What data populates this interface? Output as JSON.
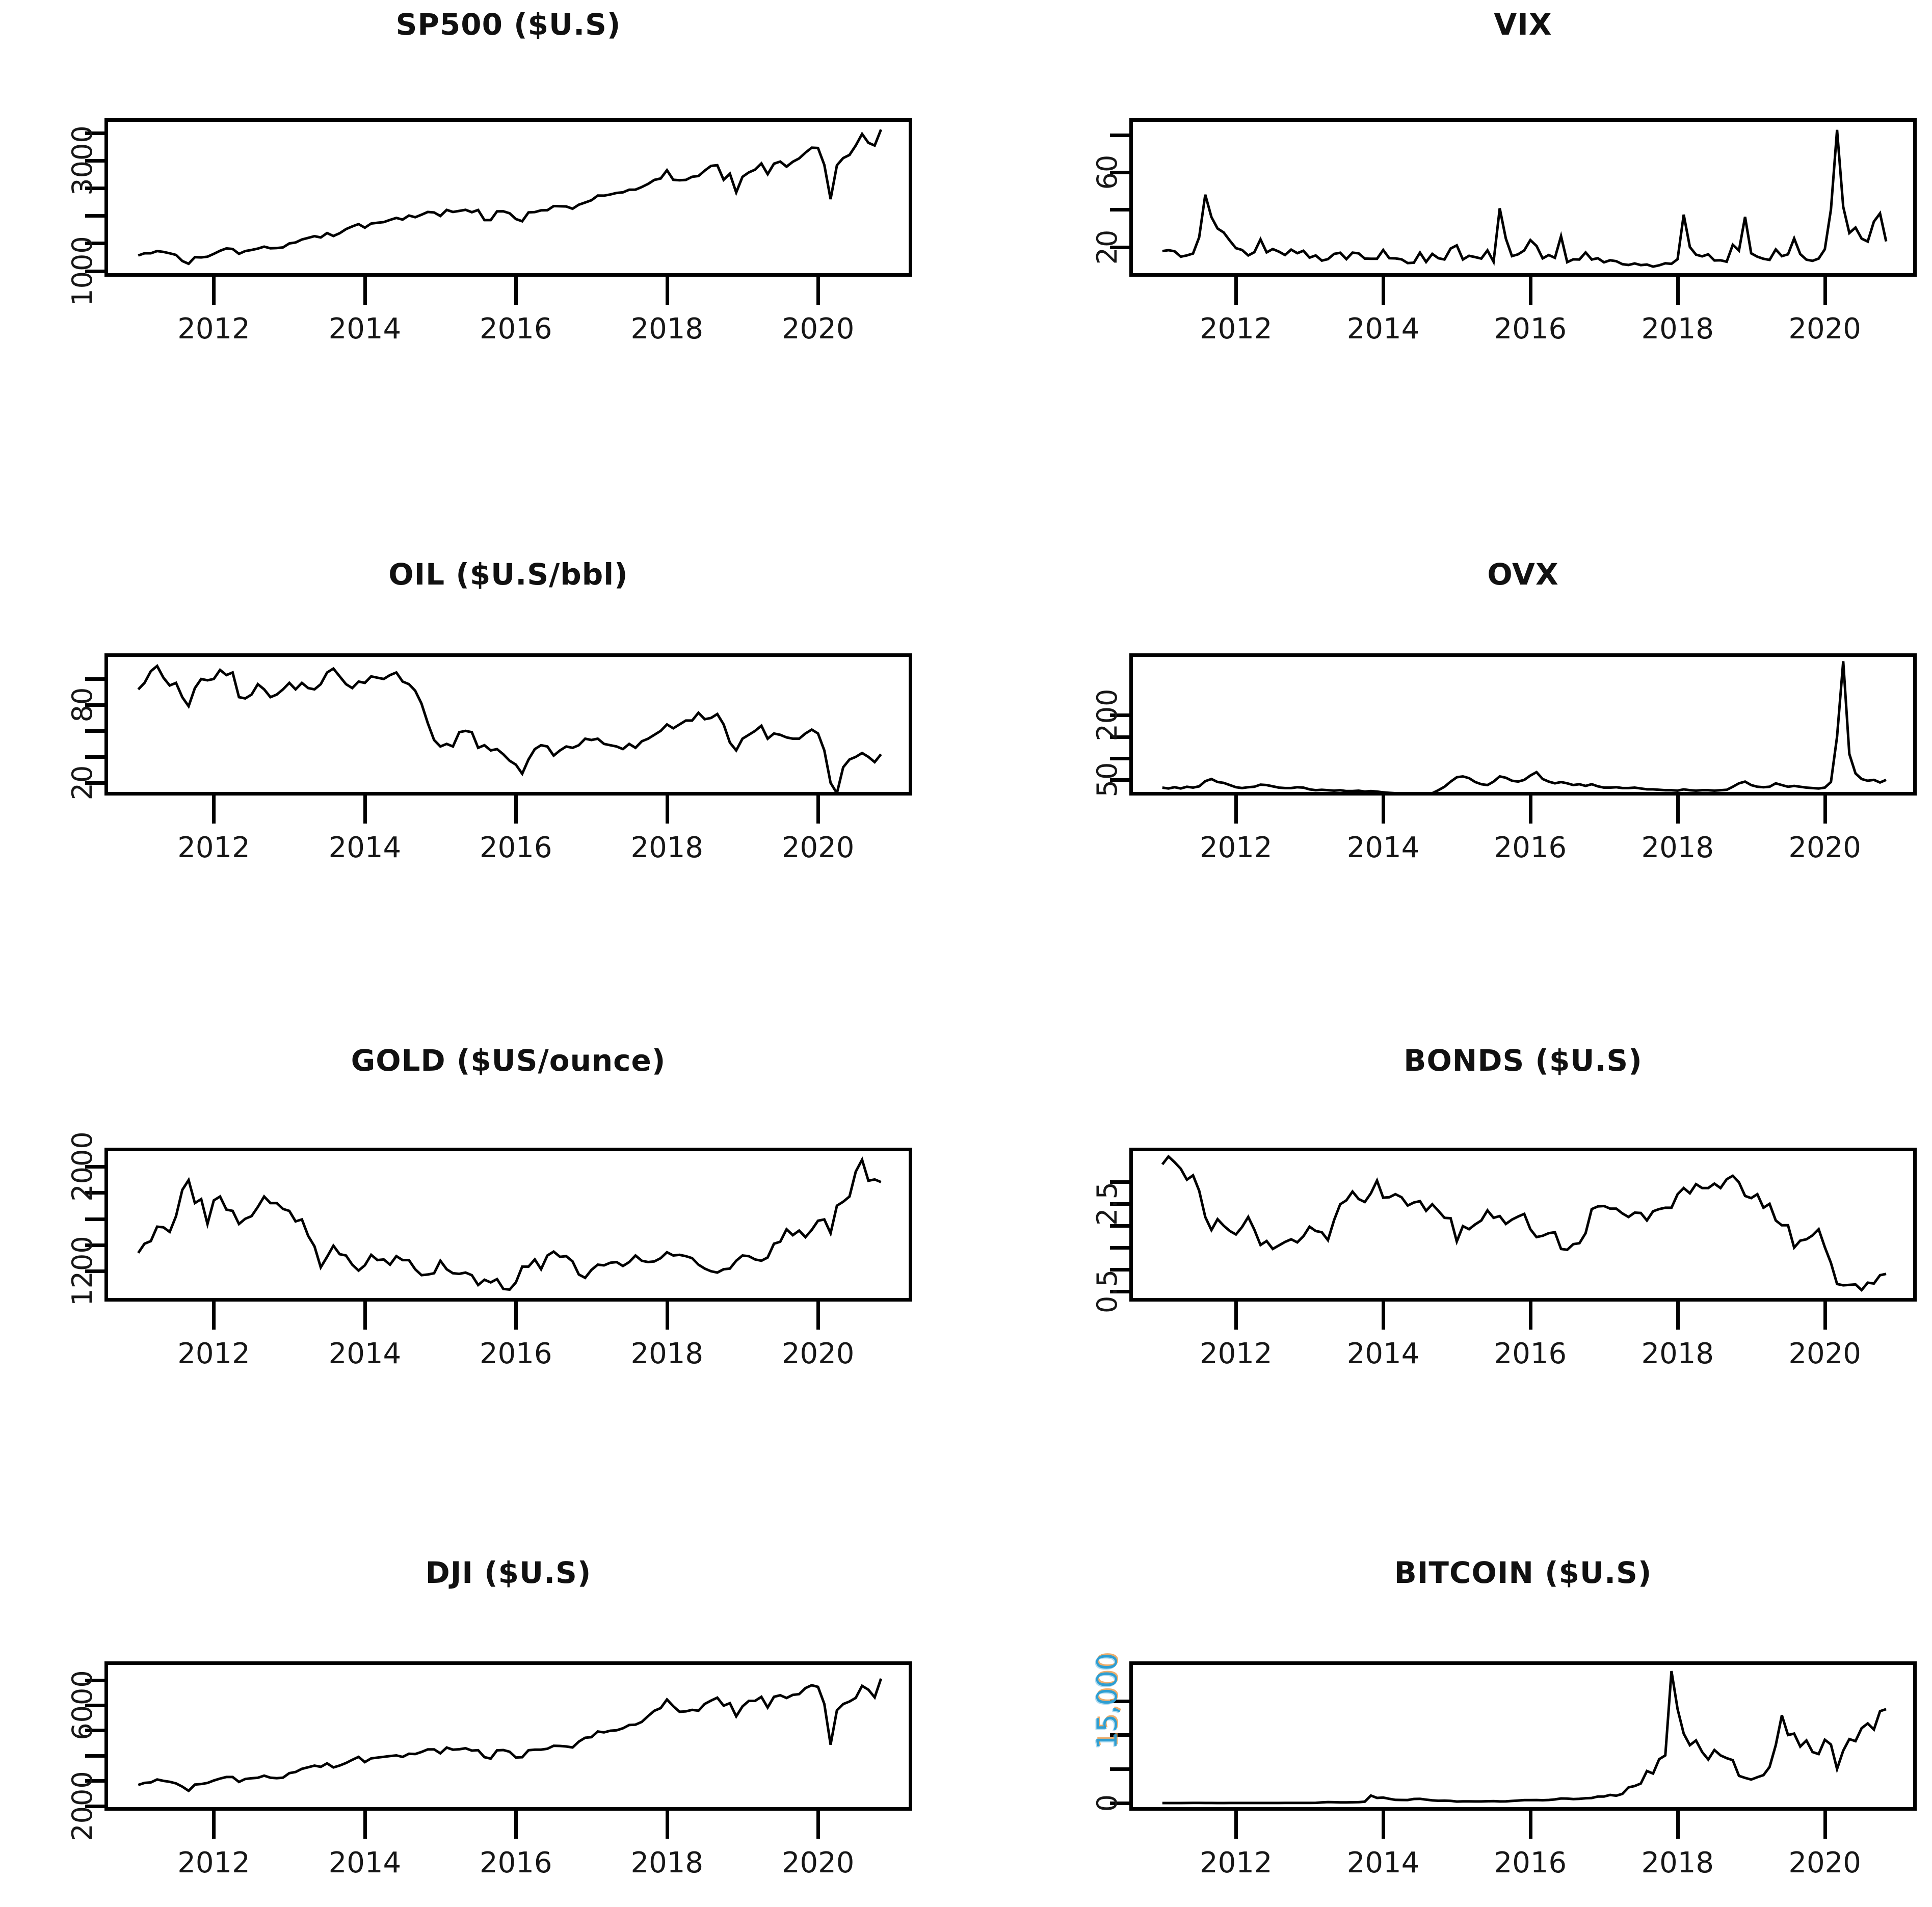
{
  "figure": {
    "description_titles": [
      "SP500 ($U.S)",
      "VIX",
      "OIL ($U.S/bbl)",
      "OVX",
      "GOLD ($US/ounce)",
      "BONDS ($U.S)",
      "DJI ($U.S)",
      "BITCOIN ($U.S)"
    ],
    "x_tick_years": [
      "2012",
      "2014",
      "2016",
      "2018",
      "2020"
    ]
  },
  "chart_data": [
    {
      "type": "line",
      "title": "SP500 ($U.S)",
      "xlabel": "",
      "ylabel": "",
      "xlim": [
        2010.6,
        2021.2
      ],
      "ylim": [
        960,
        3700
      ],
      "xticks": [
        2012,
        2014,
        2016,
        2018,
        2020
      ],
      "yticks": [
        1000,
        1500,
        2000,
        2500,
        3000,
        3500
      ],
      "ytick_labels": [
        {
          "v": 3000,
          "t": "3000"
        },
        {
          "v": 1000,
          "t": "1000"
        }
      ],
      "grid": false,
      "legend": null,
      "x_start": 2011.0,
      "x_step": 0.083333,
      "y": [
        1280,
        1320,
        1320,
        1360,
        1345,
        1320,
        1290,
        1180,
        1130,
        1250,
        1245,
        1258,
        1310,
        1365,
        1408,
        1398,
        1310,
        1360,
        1380,
        1405,
        1440,
        1410,
        1415,
        1426,
        1498,
        1515,
        1569,
        1598,
        1630,
        1606,
        1686,
        1633,
        1682,
        1757,
        1806,
        1848,
        1783,
        1859,
        1872,
        1884,
        1924,
        1960,
        1930,
        2003,
        1972,
        2018,
        2068,
        2059,
        1995,
        2105,
        2068,
        2086,
        2107,
        2063,
        2104,
        1920,
        1920,
        2079,
        2080,
        2044,
        1940,
        1900,
        2060,
        2065,
        2097,
        2099,
        2174,
        2171,
        2168,
        2126,
        2199,
        2239,
        2279,
        2364,
        2363,
        2384,
        2412,
        2423,
        2470,
        2472,
        2519,
        2575,
        2648,
        2674,
        2824,
        2650,
        2641,
        2648,
        2705,
        2718,
        2816,
        2902,
        2914,
        2650,
        2760,
        2420,
        2704,
        2784,
        2834,
        2946,
        2752,
        2942,
        2980,
        2888,
        2977,
        3038,
        3141,
        3231,
        3226,
        2920,
        2300,
        2912,
        3044,
        3100,
        3271,
        3480,
        3320,
        3270,
        3560
      ]
    },
    {
      "type": "line",
      "title": "VIX",
      "xlabel": "",
      "ylabel": "",
      "xlim": [
        2010.6,
        2021.2
      ],
      "ylim": [
        6,
        87
      ],
      "xticks": [
        2012,
        2014,
        2016,
        2018,
        2020
      ],
      "yticks": [
        20,
        40,
        60,
        80
      ],
      "ytick_labels": [
        {
          "v": 60,
          "t": "60"
        },
        {
          "v": 20,
          "t": "20"
        }
      ],
      "grid": false,
      "legend": null,
      "x_start": 2011.0,
      "x_step": 0.083333,
      "y": [
        17.8,
        18.3,
        17.7,
        14.8,
        15.5,
        16.5,
        25.2,
        48,
        36,
        29.9,
        27.8,
        23.4,
        19.4,
        18.4,
        15.5,
        17.2,
        24.1,
        17.1,
        18.9,
        17.5,
        15.7,
        18.6,
        16.7,
        18.0,
        14.3,
        15.5,
        12.7,
        13.5,
        16.3,
        16.9,
        13.5,
        17.0,
        16.6,
        13.8,
        13.7,
        13.7,
        18.4,
        14.0,
        13.9,
        13.4,
        11.4,
        11.6,
        17.0,
        12.0,
        16.3,
        14.0,
        13.3,
        19.2,
        20.9,
        13.3,
        15.3,
        14.6,
        13.8,
        18.2,
        12.1,
        40.7,
        24.5,
        15.1,
        16.1,
        18.2,
        23.7,
        20.6,
        13.9,
        15.7,
        14.2,
        25.8,
        11.9,
        13.4,
        13.3,
        17.1,
        13.3,
        14.0,
        11.8,
        12.9,
        12.4,
        10.8,
        10.4,
        11.2,
        10.3,
        10.6,
        9.5,
        10.2,
        11.3,
        11.0,
        13.5,
        37.3,
        20.0,
        15.9,
        15.0,
        16.1,
        12.8,
        12.9,
        12.1,
        21.2,
        18.1,
        36.1,
        16.6,
        14.8,
        13.7,
        13.1,
        18.7,
        15.1,
        16.1,
        24.6,
        16.2,
        13.2,
        12.6,
        13.8,
        18.8,
        40.1,
        82.7,
        41.5,
        27.5,
        30.4,
        24.5,
        22.9,
        33.6,
        38.0,
        23.0
      ]
    },
    {
      "type": "line",
      "title": "OIL ($U.S/bbl)",
      "xlabel": "",
      "ylabel": "",
      "xlim": [
        2010.6,
        2021.2
      ],
      "ylim": [
        13,
        117
      ],
      "xticks": [
        2012,
        2014,
        2016,
        2018,
        2020
      ],
      "yticks": [
        20,
        40,
        60,
        80,
        100
      ],
      "ytick_labels": [
        {
          "v": 80,
          "t": "80"
        },
        {
          "v": 20,
          "t": "20"
        }
      ],
      "grid": false,
      "legend": null,
      "x_start": 2011.0,
      "x_step": 0.083333,
      "y": [
        92,
        97,
        106,
        110,
        101,
        95,
        97,
        86,
        79,
        93,
        100,
        99,
        100,
        107,
        103,
        105,
        86,
        85,
        88,
        96,
        92,
        86,
        88,
        92,
        97,
        92,
        97,
        93,
        92,
        96,
        105,
        108,
        102,
        96,
        93,
        98,
        97,
        102,
        101,
        100,
        103,
        105,
        98,
        96,
        91,
        81,
        66,
        53,
        48,
        50,
        48,
        59,
        60,
        59,
        47,
        49,
        45,
        46,
        42,
        37,
        34,
        27,
        38,
        46,
        49,
        48,
        41,
        45,
        48,
        47,
        49,
        54,
        53,
        54,
        50,
        49,
        48,
        46,
        50,
        47,
        52,
        54,
        57,
        60,
        65,
        62,
        65,
        68,
        68,
        74,
        69,
        70,
        73,
        65,
        51,
        45,
        54,
        57,
        60,
        64,
        54,
        58,
        57,
        55,
        54,
        54,
        58,
        61,
        58,
        45,
        20,
        12,
        32,
        38,
        40,
        43,
        40,
        36,
        42
      ]
    },
    {
      "type": "line",
      "title": "OVX",
      "xlabel": "",
      "ylabel": "",
      "xlim": [
        2010.6,
        2021.2
      ],
      "ylim": [
        22,
        335
      ],
      "xticks": [
        2012,
        2014,
        2016,
        2018,
        2020
      ],
      "yticks": [
        50,
        100,
        150,
        200
      ],
      "ytick_labels": [
        {
          "v": 200,
          "t": "200"
        },
        {
          "v": 50,
          "t": "50"
        }
      ],
      "grid": false,
      "legend": null,
      "x_start": 2011.0,
      "x_step": 0.083333,
      "y": [
        32,
        30,
        33,
        30,
        34,
        32,
        35,
        47,
        52,
        45,
        43,
        38,
        33,
        31,
        33,
        34,
        39,
        38,
        35,
        32,
        31,
        31,
        33,
        32,
        28,
        26,
        27,
        26,
        25,
        26,
        24,
        24,
        25,
        23,
        24,
        23,
        21,
        20,
        19,
        17,
        16,
        15,
        15,
        16,
        19,
        26,
        34,
        46,
        56,
        58,
        54,
        45,
        40,
        38,
        46,
        58,
        55,
        48,
        46,
        50,
        60,
        68,
        52,
        46,
        42,
        45,
        42,
        38,
        40,
        36,
        40,
        35,
        32,
        32,
        33,
        31,
        31,
        32,
        30,
        28,
        28,
        27,
        26,
        26,
        25,
        28,
        26,
        25,
        26,
        26,
        25,
        26,
        27,
        34,
        42,
        46,
        38,
        34,
        33,
        34,
        42,
        38,
        34,
        36,
        34,
        32,
        31,
        30,
        32,
        45,
        150,
        325,
        110,
        65,
        52,
        48,
        50,
        44,
        50
      ]
    },
    {
      "type": "line",
      "title": "GOLD ($US/ounce)",
      "xlabel": "",
      "ylabel": "",
      "xlim": [
        2010.6,
        2021.2
      ],
      "ylim": [
        996,
        2115
      ],
      "xticks": [
        2012,
        2014,
        2016,
        2018,
        2020
      ],
      "yticks": [
        1200,
        1400,
        1600,
        1800,
        2000
      ],
      "ytick_labels": [
        {
          "v": 2000,
          "t": "2000"
        },
        {
          "v": 1200,
          "t": "1200"
        }
      ],
      "grid": false,
      "legend": null,
      "x_start": 2011.0,
      "x_step": 0.083333,
      "y": [
        1340,
        1410,
        1430,
        1540,
        1535,
        1500,
        1620,
        1820,
        1895,
        1720,
        1750,
        1560,
        1740,
        1770,
        1670,
        1660,
        1560,
        1600,
        1620,
        1690,
        1770,
        1720,
        1720,
        1675,
        1660,
        1580,
        1595,
        1470,
        1390,
        1230,
        1310,
        1395,
        1330,
        1320,
        1250,
        1205,
        1245,
        1325,
        1285,
        1290,
        1250,
        1315,
        1285,
        1285,
        1215,
        1170,
        1175,
        1185,
        1280,
        1215,
        1185,
        1180,
        1190,
        1170,
        1095,
        1135,
        1115,
        1140,
        1065,
        1060,
        1115,
        1235,
        1235,
        1290,
        1215,
        1320,
        1350,
        1310,
        1315,
        1275,
        1175,
        1150,
        1210,
        1250,
        1245,
        1265,
        1270,
        1240,
        1270,
        1320,
        1280,
        1270,
        1275,
        1300,
        1345,
        1320,
        1325,
        1315,
        1300,
        1250,
        1220,
        1200,
        1190,
        1215,
        1220,
        1280,
        1320,
        1315,
        1290,
        1280,
        1305,
        1410,
        1425,
        1520,
        1475,
        1510,
        1460,
        1515,
        1585,
        1595,
        1490,
        1700,
        1730,
        1770,
        1960,
        2050,
        1890,
        1900,
        1880
      ]
    },
    {
      "type": "line",
      "title": "BONDS ($U.S)",
      "xlabel": "",
      "ylabel": "",
      "xlim": [
        2010.6,
        2021.2
      ],
      "ylim": [
        0.35,
        3.7
      ],
      "xticks": [
        2012,
        2014,
        2016,
        2018,
        2020
      ],
      "yticks": [
        0.5,
        1.0,
        1.5,
        2.0,
        2.5,
        3.0
      ],
      "ytick_labels": [
        {
          "v": 2.5,
          "t": "2.5"
        },
        {
          "v": 0.5,
          "t": "0.5"
        }
      ],
      "grid": false,
      "legend": null,
      "x_start": 2011.0,
      "x_step": 0.083333,
      "y": [
        3.4,
        3.58,
        3.45,
        3.3,
        3.05,
        3.15,
        2.8,
        2.2,
        1.9,
        2.15,
        2.0,
        1.88,
        1.8,
        1.97,
        2.2,
        1.91,
        1.56,
        1.65,
        1.47,
        1.55,
        1.63,
        1.69,
        1.62,
        1.76,
        1.98,
        1.88,
        1.85,
        1.67,
        2.13,
        2.49,
        2.58,
        2.78,
        2.61,
        2.54,
        2.74,
        3.03,
        2.64,
        2.65,
        2.72,
        2.65,
        2.46,
        2.53,
        2.56,
        2.34,
        2.49,
        2.34,
        2.18,
        2.17,
        1.64,
        1.99,
        1.92,
        2.03,
        2.12,
        2.35,
        2.18,
        2.22,
        2.04,
        2.14,
        2.21,
        2.27,
        1.92,
        1.74,
        1.77,
        1.83,
        1.85,
        1.47,
        1.45,
        1.58,
        1.6,
        1.83,
        2.38,
        2.44,
        2.45,
        2.39,
        2.39,
        2.28,
        2.2,
        2.3,
        2.29,
        2.12,
        2.33,
        2.38,
        2.41,
        2.41,
        2.72,
        2.86,
        2.74,
        2.95,
        2.86,
        2.86,
        2.96,
        2.86,
        3.06,
        3.14,
        2.99,
        2.68,
        2.63,
        2.72,
        2.41,
        2.5,
        2.12,
        2.01,
        2.01,
        1.5,
        1.66,
        1.69,
        1.78,
        1.92,
        1.51,
        1.15,
        0.67,
        0.64,
        0.65,
        0.66,
        0.53,
        0.7,
        0.68,
        0.87,
        0.9
      ]
    },
    {
      "type": "line",
      "title": "DJI ($U.S)",
      "xlabel": "",
      "ylabel": "",
      "xlim": [
        2010.6,
        2021.2
      ],
      "ylim": [
        1950,
        7600
      ],
      "xticks": [
        2012,
        2014,
        2016,
        2018,
        2020
      ],
      "yticks": [
        2000,
        3000,
        4000,
        5000,
        6000,
        7000
      ],
      "ytick_labels": [
        {
          "v": 6000,
          "t": "6000"
        },
        {
          "v": 2000,
          "t": "2000"
        }
      ],
      "grid": false,
      "legend": null,
      "x_start": 2011.0,
      "x_step": 0.083333,
      "y": [
        2831,
        2911,
        2933,
        3050,
        2993,
        2956,
        2891,
        2765,
        2598,
        2846,
        2868,
        2909,
        3008,
        3084,
        3146,
        3146,
        2951,
        3067,
        3097,
        3117,
        3199,
        3118,
        3101,
        3120,
        3300,
        3346,
        3471,
        3533,
        3599,
        3550,
        3690,
        3526,
        3602,
        3701,
        3830,
        3947,
        3738,
        3886,
        3919,
        3948,
        3980,
        4006,
        3944,
        4071,
        4058,
        4141,
        4245,
        4243,
        4087,
        4317,
        4232,
        4248,
        4288,
        4195,
        4212,
        3935,
        3877,
        4206,
        4219,
        4149,
        3921,
        3933,
        4211,
        4232,
        4235,
        4269,
        4389,
        4381,
        4359,
        4320,
        4553,
        4706,
        4730,
        4955,
        4920,
        4986,
        5002,
        5083,
        5212,
        5226,
        5335,
        5566,
        5779,
        5885,
        6226,
        5959,
        5739,
        5753,
        5813,
        5779,
        6051,
        6182,
        6300,
        5980,
        6080,
        5554,
        5952,
        6170,
        6173,
        6332,
        5908,
        6333,
        6396,
        6286,
        6409,
        6439,
        6679,
        6795,
        6728,
        6050,
        4430,
        5797,
        6044,
        6146,
        6292,
        6769,
        6615,
        6310,
        7057
      ]
    },
    {
      "type": "line",
      "title": "BITCOIN ($U.S)",
      "xlabel": "",
      "ylabel": "",
      "xlim": [
        2010.6,
        2021.2
      ],
      "ylim": [
        -600,
        20300
      ],
      "xticks": [
        2012,
        2014,
        2016,
        2018,
        2020
      ],
      "yticks": [
        0,
        5000,
        10000,
        15000
      ],
      "ytick_labels": [
        {
          "v": 15000,
          "t": "15,000",
          "colored": true
        },
        {
          "v": 0,
          "t": "0"
        }
      ],
      "accent_label_color": "#2e9ed2",
      "accent_label_fringe_color": "#e8923a",
      "grid": false,
      "legend": null,
      "x_start": 2011.0,
      "x_step": 0.083333,
      "y": [
        1,
        1,
        1,
        1,
        8,
        15,
        14,
        10,
        5,
        3,
        3,
        4,
        6,
        5,
        5,
        5,
        5,
        7,
        8,
        10,
        12,
        11,
        12,
        13,
        15,
        30,
        90,
        140,
        120,
        100,
        95,
        110,
        130,
        200,
        1100,
        750,
        800,
        620,
        460,
        450,
        440,
        600,
        620,
        500,
        400,
        340,
        360,
        320,
        220,
        250,
        245,
        235,
        230,
        260,
        285,
        230,
        236,
        310,
        370,
        430,
        430,
        440,
        415,
        450,
        530,
        670,
        660,
        580,
        610,
        700,
        740,
        960,
        960,
        1190,
        1080,
        1350,
        2300,
        2500,
        2870,
        4700,
        4340,
        6450,
        7000,
        19400,
        13800,
        10200,
        8500,
        9200,
        7500,
        6400,
        7800,
        7000,
        6600,
        6300,
        4000,
        3700,
        3450,
        3800,
        4100,
        5300,
        8500,
        12900,
        10000,
        10200,
        8300,
        9200,
        7500,
        7200,
        9300,
        8600,
        5000,
        7700,
        9400,
        9100,
        11000,
        11700,
        10800,
        13500,
        13800
      ]
    }
  ]
}
